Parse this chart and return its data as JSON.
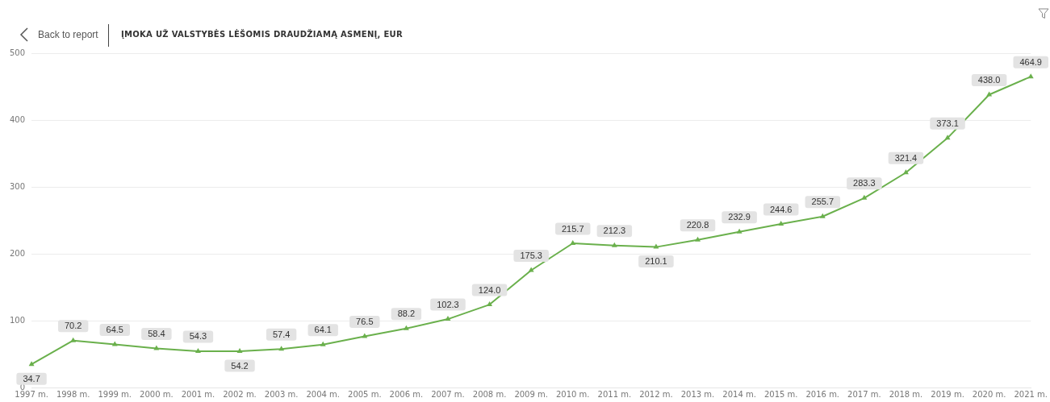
{
  "chart_data": {
    "type": "line",
    "title": "ĮMOKA UŽ VALSTYBĖS LĖŠOMIS DRAUDŽIAMĄ ASMENĮ, EUR",
    "annotations": [
      "Back to report"
    ],
    "categories": [
      "1997 m.",
      "1998 m.",
      "1999 m.",
      "2000 m.",
      "2001 m.",
      "2002 m.",
      "2003 m.",
      "2004 m.",
      "2005 m.",
      "2006 m.",
      "2007 m.",
      "2008 m.",
      "2009 m.",
      "2010 m.",
      "2011 m.",
      "2012 m.",
      "2013 m.",
      "2014 m.",
      "2015 m.",
      "2016 m.",
      "2017 m.",
      "2018 m.",
      "2019 m.",
      "2020 m.",
      "2021 m."
    ],
    "series": [
      {
        "color": "#6ab04c",
        "values": [
          34.7,
          70.2,
          64.5,
          58.4,
          54.3,
          54.2,
          57.4,
          64.1,
          76.5,
          88.2,
          102.3,
          124.0,
          175.3,
          215.7,
          212.3,
          210.1,
          220.8,
          232.9,
          244.6,
          255.7,
          283.3,
          321.4,
          373.1,
          438.0,
          464.9
        ],
        "value_labels": [
          "34.7",
          "70.2",
          "64.5",
          "58.4",
          "54.3",
          "54.2",
          "57.4",
          "64.1",
          "76.5",
          "88.2",
          "102.3",
          "124.0",
          "175.3",
          "215.7",
          "212.3",
          "210.1",
          "220.8",
          "232.9",
          "244.6",
          "255.7",
          "283.3",
          "321.4",
          "373.1",
          "438.0",
          "464.9"
        ]
      }
    ],
    "ylim": [
      0,
      500
    ],
    "yticks": [
      0,
      100,
      200,
      300,
      400,
      500
    ],
    "grid": "y",
    "legend": false,
    "marker": "triangle",
    "line_style": "solid"
  }
}
